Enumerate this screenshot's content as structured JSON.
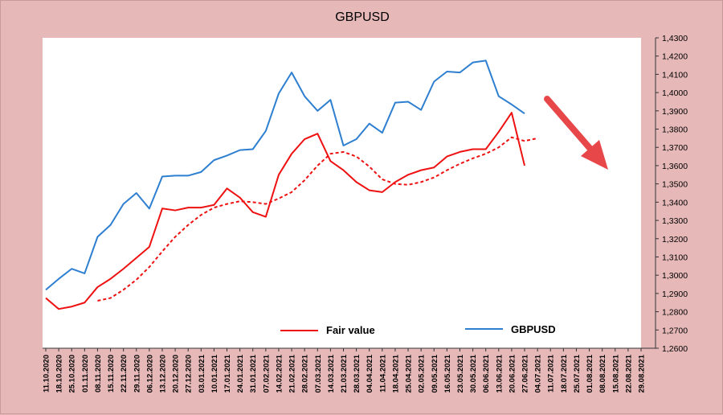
{
  "colors": {
    "background": "#e6b8b8",
    "plot_background": "#ffffff",
    "fair_value": "#ee1111",
    "gbpusd": "#2e7fd0",
    "arrow": "#e8474a"
  },
  "chart_data": {
    "type": "line",
    "title": "GBPUSD",
    "xlabel": "",
    "ylabel": "",
    "ylim": [
      1.26,
      1.43
    ],
    "y_ticks": [
      "1,2600",
      "1,2700",
      "1,2800",
      "1,2900",
      "1,3000",
      "1,3100",
      "1,3200",
      "1,3300",
      "1,3400",
      "1,3500",
      "1,3600",
      "1,3700",
      "1,3800",
      "1,3900",
      "1,4000",
      "1,4100",
      "1,4200",
      "1,4300"
    ],
    "y_tick_values": [
      1.26,
      1.27,
      1.28,
      1.29,
      1.3,
      1.31,
      1.32,
      1.33,
      1.34,
      1.35,
      1.36,
      1.37,
      1.38,
      1.39,
      1.4,
      1.41,
      1.42,
      1.43
    ],
    "categories": [
      "11.10.2020",
      "18.10.2020",
      "25.10.2020",
      "01.11.2020",
      "08.11.2020",
      "15.11.2020",
      "22.11.2020",
      "29.11.2020",
      "06.12.2020",
      "13.12.2020",
      "20.12.2020",
      "27.12.2020",
      "03.01.2021",
      "10.01.2021",
      "17.01.2021",
      "24.01.2021",
      "31.01.2021",
      "07.02.2021",
      "14.02.2021",
      "21.02.2021",
      "28.02.2021",
      "07.03.2021",
      "14.03.2021",
      "21.03.2021",
      "28.03.2021",
      "04.04.2021",
      "11.04.2021",
      "18.04.2021",
      "25.04.2021",
      "02.05.2021",
      "09.05.2021",
      "16.05.2021",
      "23.05.2021",
      "30.05.2021",
      "06.06.2021",
      "13.06.2021",
      "20.06.2021",
      "27.06.2021",
      "04.07.2021",
      "11.07.2021",
      "18.07.2021",
      "25.07.2021",
      "01.08.2021",
      "08.08.2021",
      "15.08.2021",
      "22.08.2021",
      "29.08.2021"
    ],
    "series": [
      {
        "name": "Fair value",
        "style": "solid",
        "values": [
          1.2875,
          1.2815,
          1.2828,
          1.285,
          1.2935,
          1.298,
          1.3035,
          1.3095,
          1.3155,
          1.3365,
          1.3355,
          1.337,
          1.337,
          1.3385,
          1.3475,
          1.3425,
          1.3345,
          1.332,
          1.355,
          1.3665,
          1.3745,
          1.3775,
          1.3625,
          1.3575,
          1.351,
          1.3465,
          1.3455,
          1.351,
          1.355,
          1.3575,
          1.359,
          1.365,
          1.3675,
          1.369,
          1.369,
          1.3785,
          1.389,
          1.36,
          null,
          null,
          null,
          null,
          null,
          null,
          null,
          null,
          null
        ]
      },
      {
        "name": "",
        "style": "dashed",
        "values": [
          null,
          null,
          null,
          null,
          1.286,
          1.2875,
          1.292,
          1.2975,
          1.3045,
          1.313,
          1.321,
          1.3275,
          1.333,
          1.337,
          1.339,
          1.3405,
          1.34,
          1.339,
          1.342,
          1.3455,
          1.352,
          1.36,
          1.3665,
          1.3675,
          1.365,
          1.3595,
          1.3525,
          1.35,
          1.3495,
          1.351,
          1.3535,
          1.3575,
          1.361,
          1.364,
          1.3665,
          1.37,
          1.3755,
          1.3735,
          1.375,
          null,
          null,
          null,
          null,
          null,
          null,
          null,
          null
        ]
      },
      {
        "name": "GBPUSD",
        "style": "solid",
        "values": [
          1.292,
          1.298,
          1.3035,
          1.301,
          1.321,
          1.3275,
          1.339,
          1.345,
          1.3365,
          1.354,
          1.3545,
          1.3545,
          1.3565,
          1.363,
          1.3655,
          1.3685,
          1.369,
          1.379,
          1.3995,
          1.411,
          1.398,
          1.39,
          1.396,
          1.371,
          1.3745,
          1.383,
          1.378,
          1.3945,
          1.395,
          1.3905,
          1.406,
          1.4115,
          1.411,
          1.4165,
          1.4175,
          1.398,
          1.3935,
          1.3885,
          null,
          null,
          null,
          null,
          null,
          null,
          null,
          null,
          null
        ]
      }
    ],
    "legend": {
      "placement": "bottom",
      "entries": [
        "Fair value",
        "GBPUSD"
      ]
    }
  }
}
